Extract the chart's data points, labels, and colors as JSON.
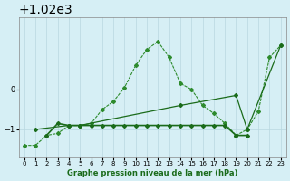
{
  "title": "Graphe pression niveau de la mer (hPa)",
  "xlabel": "Graphe pression niveau de la mer (hPa)",
  "x_ticks": [
    0,
    1,
    2,
    3,
    4,
    5,
    6,
    7,
    8,
    9,
    10,
    11,
    12,
    13,
    14,
    15,
    16,
    17,
    18,
    19,
    20,
    21,
    22,
    23
  ],
  "xlim": [
    -0.5,
    23.5
  ],
  "ylim": [
    1018.3,
    1021.8
  ],
  "yticks": [
    1019,
    1020
  ],
  "bg_color": "#d6eff5",
  "grid_color": "#b8d8e0",
  "line_color": "#1a6b1a",
  "line_color2": "#2d8b2d",
  "series1": {
    "x": [
      0,
      1,
      2,
      3,
      4,
      5,
      6,
      7,
      8,
      9,
      10,
      11,
      12,
      13,
      14,
      15,
      16,
      17,
      18,
      19,
      20,
      21,
      22,
      23
    ],
    "y": [
      1018.6,
      1018.6,
      1018.85,
      1018.9,
      1019.1,
      1019.1,
      1019.15,
      1019.5,
      1019.7,
      1020.05,
      1020.6,
      1021.0,
      1021.2,
      1020.8,
      1020.15,
      1020.0,
      1019.6,
      1019.4,
      1019.15,
      1018.85,
      1019.0,
      1019.45,
      1020.8,
      1021.1
    ]
  },
  "series2": {
    "x": [
      2,
      3,
      4,
      5,
      6,
      7,
      8,
      9,
      10,
      11,
      12,
      13,
      14,
      15,
      16,
      17,
      18,
      19,
      20
    ],
    "y": [
      1018.85,
      1019.15,
      1019.1,
      1019.1,
      1019.1,
      1019.1,
      1019.1,
      1019.1,
      1019.1,
      1019.1,
      1019.1,
      1019.1,
      1019.1,
      1019.1,
      1019.1,
      1019.1,
      1019.1,
      1018.85,
      1018.85
    ]
  },
  "series3": {
    "x": [
      1,
      4,
      5,
      14,
      19,
      20,
      23
    ],
    "y": [
      1019.0,
      1019.1,
      1019.1,
      1019.6,
      1019.85,
      1019.0,
      1021.1
    ]
  }
}
